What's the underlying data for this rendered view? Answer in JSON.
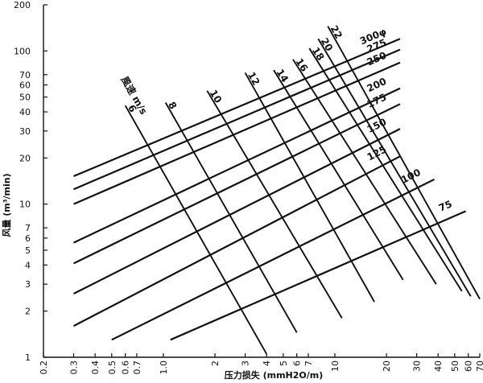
{
  "chart_data": {
    "type": "nomogram",
    "title": "",
    "xlabel": "压力损失 (mmH2O/m)",
    "ylabel": "风量 (m³/min)",
    "x_scale": "log",
    "y_scale": "log",
    "xlim": [
      0.2,
      70
    ],
    "ylim": [
      1,
      200
    ],
    "x_ticks": [
      "0.2",
      "0.3",
      "0.4",
      "0.5",
      "0.6",
      "0.7",
      "1.0",
      "2",
      "3",
      "4",
      "5",
      "6",
      "7",
      "10",
      "20",
      "30",
      "40",
      "50",
      "60",
      "70"
    ],
    "y_ticks": [
      "1",
      "2",
      "3",
      "4",
      "5",
      "6",
      "7",
      "10",
      "20",
      "30",
      "40",
      "50",
      "60",
      "70",
      "100",
      "200"
    ],
    "velocity_label": "風速 m/s",
    "grid": false,
    "series": [
      {
        "group": "diameter_mm",
        "name": "75",
        "points": [
          [
            1.1,
            1.3
          ],
          [
            58,
            9.0
          ]
        ]
      },
      {
        "group": "diameter_mm",
        "name": "100",
        "points": [
          [
            0.5,
            1.3
          ],
          [
            38,
            14.5
          ]
        ]
      },
      {
        "group": "diameter_mm",
        "name": "125",
        "points": [
          [
            0.3,
            1.6
          ],
          [
            24,
            20.5
          ]
        ]
      },
      {
        "group": "diameter_mm",
        "name": "150",
        "points": [
          [
            0.3,
            2.6
          ],
          [
            24,
            31
          ]
        ]
      },
      {
        "group": "diameter_mm",
        "name": "175",
        "points": [
          [
            0.3,
            4.1
          ],
          [
            24,
            45
          ]
        ]
      },
      {
        "group": "diameter_mm",
        "name": "200",
        "points": [
          [
            0.3,
            5.6
          ],
          [
            24,
            57
          ]
        ]
      },
      {
        "group": "diameter_mm",
        "name": "250",
        "points": [
          [
            0.3,
            10
          ],
          [
            24,
            84
          ]
        ]
      },
      {
        "group": "diameter_mm",
        "name": "275",
        "points": [
          [
            0.3,
            12.5
          ],
          [
            24,
            102
          ]
        ]
      },
      {
        "group": "diameter_mm",
        "name": "300φ",
        "points": [
          [
            0.3,
            15.2
          ],
          [
            24,
            120
          ]
        ]
      },
      {
        "group": "velocity_m_per_s",
        "name": "6",
        "points": [
          [
            0.6,
            44
          ],
          [
            4.0,
            1.05
          ]
        ]
      },
      {
        "group": "velocity_m_per_s",
        "name": "8",
        "points": [
          [
            1.03,
            46
          ],
          [
            6.0,
            1.45
          ]
        ]
      },
      {
        "group": "velocity_m_per_s",
        "name": "10",
        "points": [
          [
            1.8,
            55
          ],
          [
            11,
            1.8
          ]
        ]
      },
      {
        "group": "velocity_m_per_s",
        "name": "12",
        "points": [
          [
            3.0,
            72
          ],
          [
            17,
            2.3
          ]
        ]
      },
      {
        "group": "velocity_m_per_s",
        "name": "14",
        "points": [
          [
            4.4,
            75
          ],
          [
            25,
            3.2
          ]
        ]
      },
      {
        "group": "velocity_m_per_s",
        "name": "16",
        "points": [
          [
            5.7,
            88
          ],
          [
            39,
            3.0
          ]
        ]
      },
      {
        "group": "velocity_m_per_s",
        "name": "18",
        "points": [
          [
            7.1,
            104
          ],
          [
            55,
            2.7
          ]
        ]
      },
      {
        "group": "velocity_m_per_s",
        "name": "20",
        "points": [
          [
            8.0,
            120
          ],
          [
            62,
            2.5
          ]
        ]
      },
      {
        "group": "velocity_m_per_s",
        "name": "22",
        "points": [
          [
            9.1,
            145
          ],
          [
            70,
            2.4
          ]
        ]
      }
    ]
  }
}
